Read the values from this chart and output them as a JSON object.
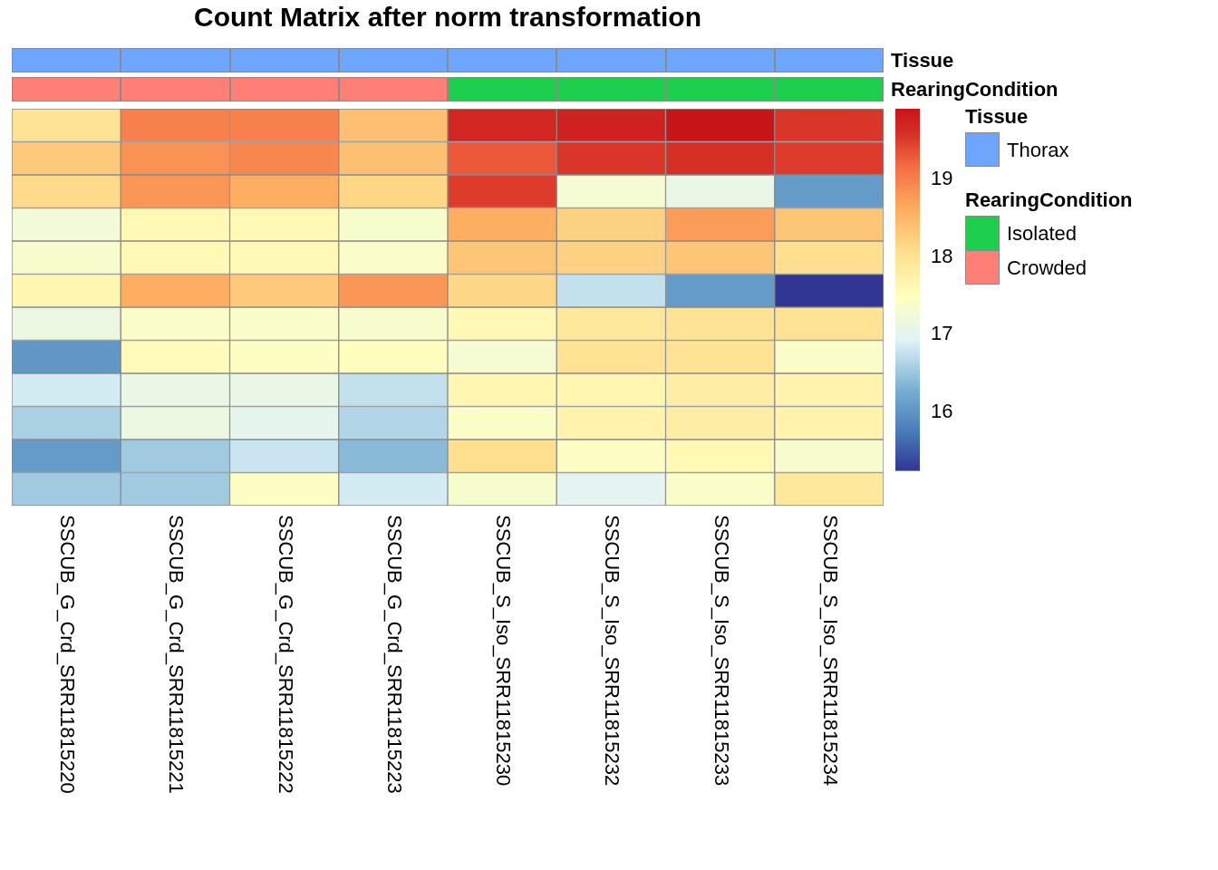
{
  "chart_data": [
    {
      "type": "heatmap",
      "title": "Count Matrix after norm transformation",
      "categories": [
        "SSCUB_G_Crd_SRR11815220",
        "SSCUB_G_Crd_SRR11815221",
        "SSCUB_G_Crd_SRR11815222",
        "SSCUB_G_Crd_SRR11815223",
        "SSCUB_S_Iso_SRR11815230",
        "SSCUB_S_Iso_SRR11815232",
        "SSCUB_S_Iso_SRR11815233",
        "SSCUB_S_Iso_SRR11815234"
      ],
      "y_categories": [
        null,
        null,
        null,
        null,
        null,
        null,
        null,
        null,
        null,
        null,
        null,
        null
      ],
      "cells": [
        [
          18.0,
          19.0,
          19.0,
          18.4,
          19.7,
          19.75,
          19.9,
          19.55
        ],
        [
          18.3,
          18.85,
          18.95,
          18.4,
          19.3,
          19.55,
          19.6,
          19.5
        ],
        [
          18.1,
          18.8,
          18.6,
          18.15,
          19.5,
          17.3,
          17.1,
          16.1
        ],
        [
          17.25,
          17.6,
          17.6,
          17.35,
          18.6,
          18.2,
          18.75,
          18.35
        ],
        [
          17.35,
          17.6,
          17.6,
          17.4,
          18.35,
          18.2,
          18.35,
          18.05
        ],
        [
          17.65,
          18.6,
          18.3,
          18.8,
          18.15,
          16.75,
          16.1,
          15.25
        ],
        [
          17.15,
          17.4,
          17.4,
          17.35,
          17.6,
          17.9,
          18.0,
          18.0
        ],
        [
          16.05,
          17.55,
          17.45,
          17.5,
          17.3,
          18.0,
          18.0,
          17.4
        ],
        [
          16.85,
          17.1,
          17.1,
          16.75,
          17.65,
          17.65,
          17.8,
          17.7
        ],
        [
          16.6,
          17.15,
          17.05,
          16.65,
          17.4,
          17.7,
          17.8,
          17.7
        ],
        [
          16.1,
          16.55,
          16.8,
          16.4,
          18.05,
          17.45,
          17.6,
          17.35
        ],
        [
          16.55,
          16.55,
          17.45,
          16.85,
          17.35,
          17.0,
          17.4,
          17.9
        ]
      ],
      "clim": [
        15.25,
        19.91
      ],
      "cticks": [
        16,
        17,
        18,
        19
      ]
    },
    {
      "type": "other",
      "y2_categories": [
        "Tissue",
        "RearingCondition"
      ],
      "series": [
        {
          "name": "Thorax",
          "color": "#6ea6ff"
        },
        {
          "name": "Isolated",
          "color": "#1ecf4e"
        },
        {
          "name": "Crowded",
          "color": "#fd7f76"
        }
      ],
      "colors": [
        [
          "#6ea6ff",
          "#6ea6ff",
          "#6ea6ff",
          "#6ea6ff",
          "#6ea6ff",
          "#6ea6ff",
          "#6ea6ff",
          "#6ea6ff"
        ],
        [
          "#fd7f76",
          "#fd7f76",
          "#fd7f76",
          "#fd7f76",
          "#1ecf4e",
          "#1ecf4e",
          "#1ecf4e",
          "#1ecf4e"
        ]
      ]
    }
  ]
}
